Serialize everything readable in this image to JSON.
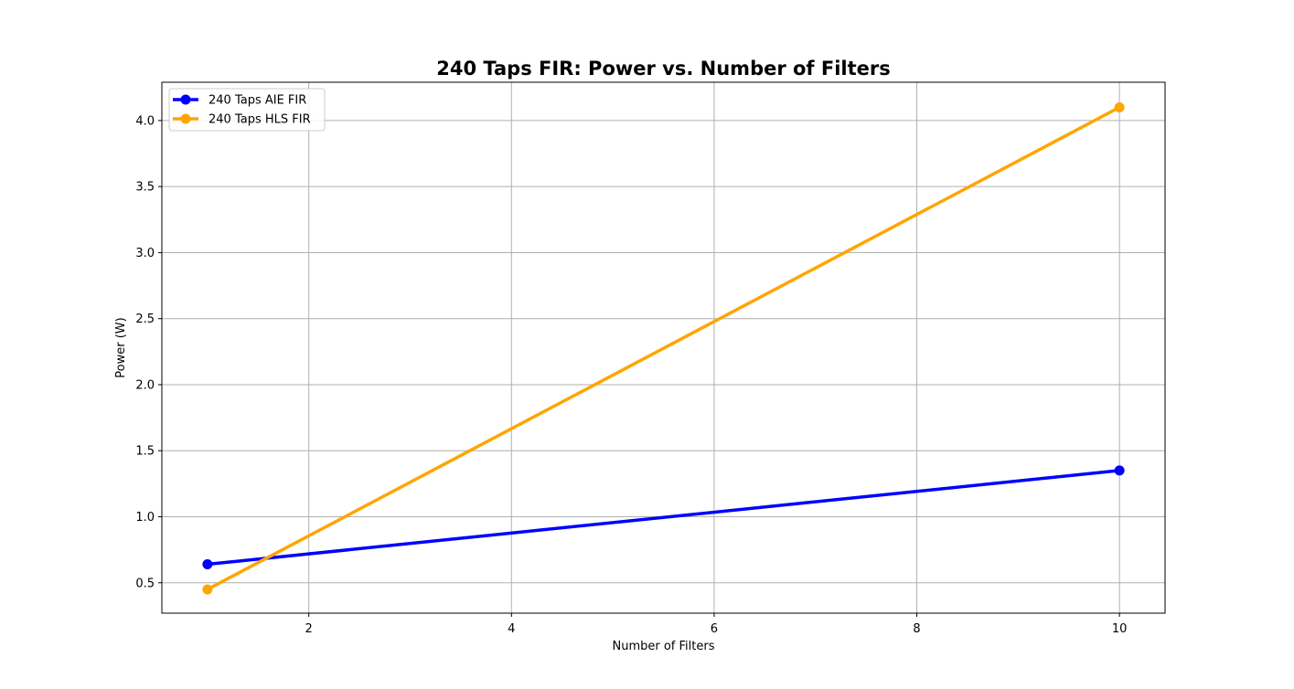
{
  "chart_data": {
    "type": "line",
    "title": "240 Taps FIR: Power vs. Number of Filters",
    "xlabel": "Number of Filters",
    "ylabel": "Power (W)",
    "xlim": [
      0.55,
      10.45
    ],
    "ylim": [
      0.27,
      4.29
    ],
    "xticks": [
      2,
      4,
      6,
      8,
      10
    ],
    "xtick_labels": [
      "2",
      "4",
      "6",
      "8",
      "10"
    ],
    "yticks": [
      0.5,
      1.0,
      1.5,
      2.0,
      2.5,
      3.0,
      3.5,
      4.0
    ],
    "ytick_labels": [
      "0.5",
      "1.0",
      "1.5",
      "2.0",
      "2.5",
      "3.0",
      "3.5",
      "4.0"
    ],
    "grid": true,
    "legend_position": "upper-left",
    "series": [
      {
        "name": "240 Taps AIE FIR",
        "color": "#0000ff",
        "x": [
          1,
          10
        ],
        "y": [
          0.64,
          1.35
        ]
      },
      {
        "name": "240 Taps HLS FIR",
        "color": "#ffa500",
        "x": [
          1,
          10
        ],
        "y": [
          0.45,
          4.1
        ]
      }
    ]
  }
}
